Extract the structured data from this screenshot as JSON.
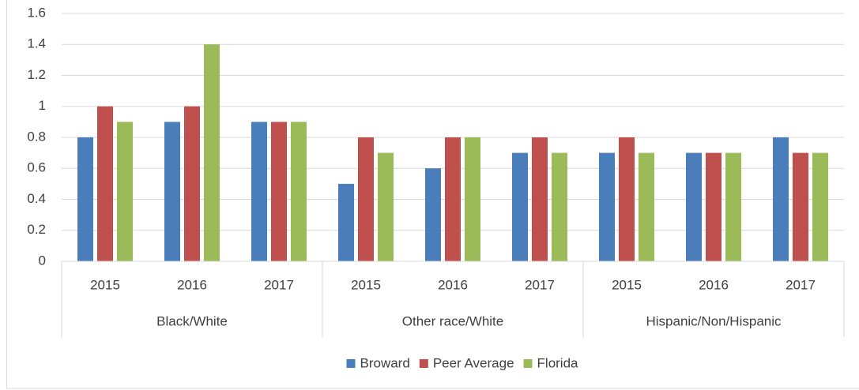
{
  "chart_data": {
    "type": "bar",
    "categories": [
      "2015",
      "2016",
      "2017",
      "2015",
      "2016",
      "2017",
      "2015",
      "2016",
      "2017"
    ],
    "groups": [
      "Black/White",
      "Other race/White",
      "Hispanic/Non/Hispanic"
    ],
    "series": [
      {
        "name": "Broward",
        "color": "#4a7ebb",
        "values": [
          0.8,
          0.9,
          0.9,
          0.5,
          0.6,
          0.7,
          0.7,
          0.7,
          0.8
        ]
      },
      {
        "name": "Peer Average",
        "color": "#c0504d",
        "values": [
          1,
          1,
          0.9,
          0.8,
          0.8,
          0.8,
          0.8,
          0.7,
          0.7
        ]
      },
      {
        "name": "Florida",
        "color": "#9bbb59",
        "values": [
          0.9,
          1.4,
          0.9,
          0.7,
          0.8,
          0.7,
          0.7,
          0.7,
          0.7
        ]
      }
    ],
    "ylim": [
      0,
      1.6
    ],
    "yticks": [
      0,
      0.2,
      0.4,
      0.6,
      0.8,
      1,
      1.2,
      1.4,
      1.6
    ],
    "grid": true,
    "legend": "bottom"
  }
}
